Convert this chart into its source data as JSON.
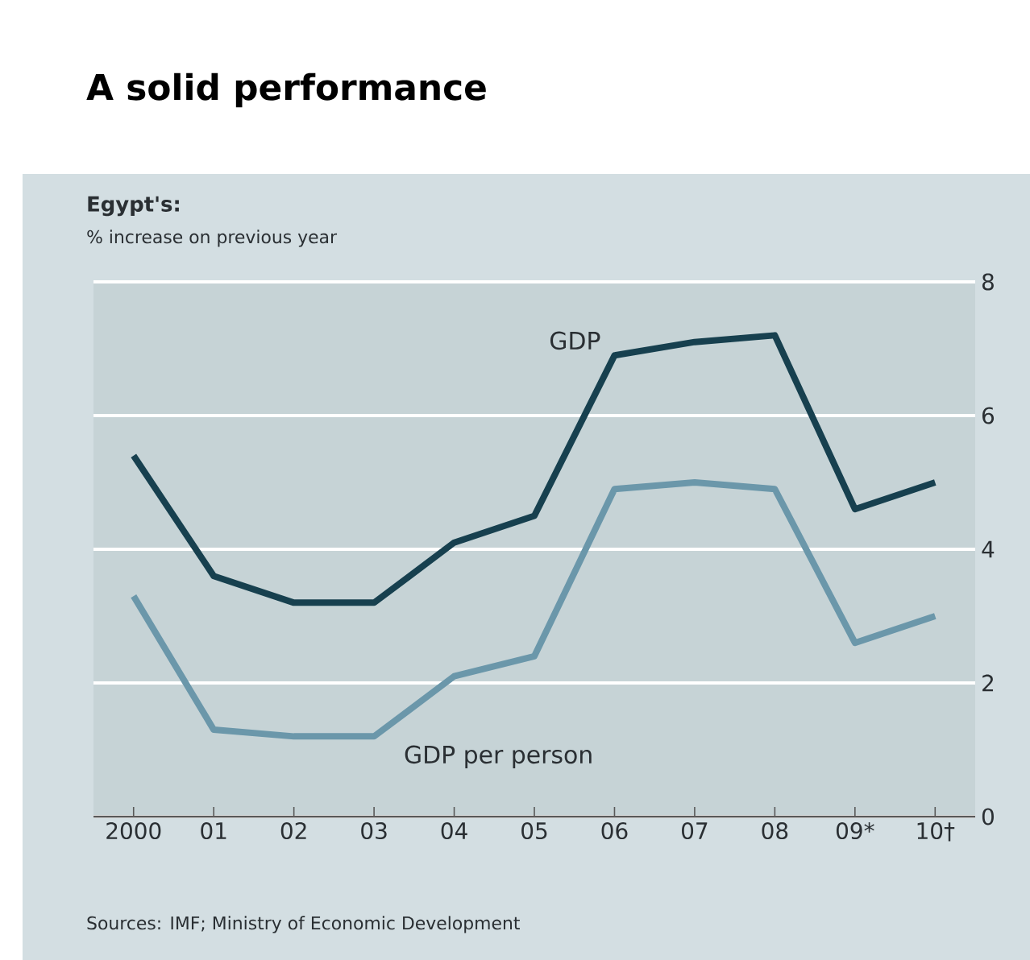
{
  "chart_data": {
    "type": "line",
    "title": "A solid performance",
    "subtitle": "Egypt's:",
    "categories": [
      "2000",
      "01",
      "02",
      "03",
      "04",
      "05",
      "06",
      "07",
      "08",
      "09*",
      "10†"
    ],
    "series": [
      {
        "name": "GDP",
        "color": "#17404f",
        "values": [
          5.4,
          3.6,
          3.2,
          3.2,
          4.1,
          4.5,
          6.9,
          7.1,
          7.2,
          4.6,
          5.0
        ]
      },
      {
        "name": "GDP per person",
        "color": "#6b97aa",
        "values": [
          3.3,
          1.3,
          1.2,
          1.2,
          2.1,
          2.4,
          4.9,
          5.0,
          4.9,
          2.6,
          3.0
        ]
      }
    ],
    "ylim": [
      0,
      8
    ],
    "yticks": [
      0,
      2,
      4,
      6,
      8
    ],
    "grid": "y",
    "line_style": "solid",
    "marker": "none",
    "annotations": [
      "% increase on previous year",
      "Sources: IMF; Ministry of Economic Development"
    ]
  }
}
